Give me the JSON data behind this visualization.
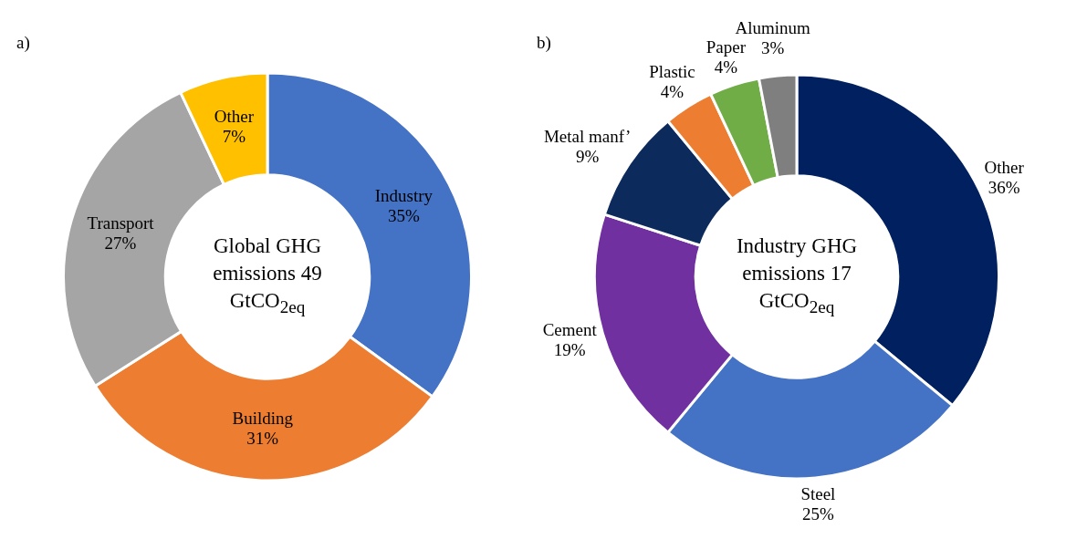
{
  "chart_data": [
    {
      "type": "donut",
      "title": "Global GHG emissions 49 GtCO$_{2eq}$",
      "annotations": [
        "a)"
      ],
      "categories": [
        "Industry",
        "Building",
        "Transport",
        "Other"
      ],
      "values": [
        35,
        31,
        27,
        7
      ],
      "colors": [
        "#4472c4",
        "#ed7d31",
        "#a5a5a5",
        "#ffc000"
      ],
      "value_labels": [
        "35%",
        "31%",
        "27%",
        "7%"
      ]
    },
    {
      "type": "donut",
      "title": "Industry GHG emissions 17 GtCO$_{2eq}$",
      "annotations": [
        "b)"
      ],
      "categories": [
        "Other",
        "Steel",
        "Cement",
        "Metal manf’",
        "Plastic",
        "Paper",
        "Aluminum"
      ],
      "values": [
        36,
        25,
        19,
        9,
        4,
        4,
        3
      ],
      "colors": [
        "#002060",
        "#4472c4",
        "#7030a0",
        "#0d2a5c",
        "#ed7d31",
        "#70ad47",
        "#7f7f7f"
      ],
      "value_labels": [
        "36%",
        "25%",
        "19%",
        "9%",
        "4%",
        "4%",
        "3%"
      ]
    }
  ]
}
